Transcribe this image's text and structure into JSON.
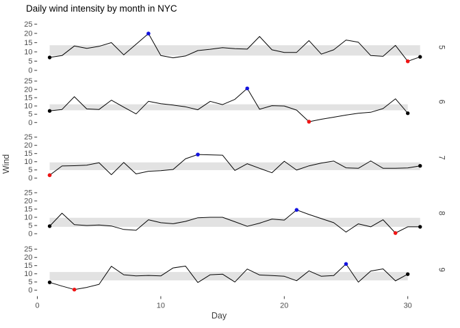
{
  "chart_data": {
    "type": "line",
    "title": "Daily wind intensity by month in NYC",
    "xlabel": "Day",
    "ylabel": "Wind",
    "x_ticks": [
      0,
      10,
      20,
      30
    ],
    "y_ticks": [
      25,
      20,
      15,
      10,
      5,
      0
    ],
    "ylim": [
      0,
      25
    ],
    "grid": "off",
    "legend": "none",
    "marker_meaning": {
      "blue_point": "monthly maximum wind",
      "red_point": "monthly minimum wind",
      "black_points": "first and last day of month"
    },
    "colors": {
      "line": "#000000",
      "band": "#E2E2E2",
      "max_point": "#1414E0",
      "min_point": "#F01414",
      "endpoint": "#000000",
      "tick_label": "#4d4d4d",
      "tick_mark": "#333333",
      "strip_label": "#444444"
    },
    "facets": [
      {
        "label": "5",
        "days": 31,
        "band": [
          8.0,
          13.6
        ],
        "max_day": 9,
        "min_day": 30,
        "endpoint_days": [
          1,
          31
        ],
        "values": [
          7.0,
          8.0,
          13.2,
          11.9,
          13.0,
          15.0,
          8.4,
          14.1,
          19.9,
          8.0,
          6.8,
          7.8,
          10.7,
          11.4,
          12.3,
          11.7,
          11.5,
          18.3,
          11.1,
          9.7,
          9.7,
          16.1,
          8.8,
          11.1,
          16.4,
          15.2,
          8.0,
          7.6,
          13.5,
          4.9,
          7.3
        ]
      },
      {
        "label": "6",
        "days": 30,
        "band": [
          7.4,
          11.0
        ],
        "max_day": 17,
        "min_day": 22,
        "endpoint_days": [
          1,
          30
        ],
        "values": [
          7.0,
          7.9,
          15.6,
          8.2,
          7.9,
          13.5,
          9.3,
          5.2,
          12.8,
          11.4,
          10.5,
          9.5,
          7.7,
          12.8,
          10.8,
          14.0,
          20.6,
          8.0,
          10.2,
          10.0,
          7.5,
          0.5,
          2.0,
          3.2,
          4.5,
          5.6,
          6.2,
          8.4,
          14.3,
          5.6
        ]
      },
      {
        "label": "7",
        "days": 31,
        "band": [
          4.9,
          9.6
        ],
        "max_day": 13,
        "min_day": 1,
        "endpoint_days": [
          1,
          31
        ],
        "values": [
          1.8,
          7.4,
          7.6,
          7.9,
          9.4,
          2.1,
          9.6,
          2.6,
          4.2,
          4.6,
          5.3,
          11.8,
          14.4,
          14.2,
          14.0,
          4.7,
          8.8,
          6.0,
          3.3,
          10.3,
          4.9,
          7.5,
          9.2,
          10.4,
          6.3,
          6.0,
          10.5,
          6.0,
          6.0,
          6.2,
          7.5
        ]
      },
      {
        "label": "8",
        "days": 31,
        "band": [
          4.2,
          9.7
        ],
        "max_day": 21,
        "min_day": 29,
        "endpoint_days": [
          1,
          31
        ],
        "values": [
          4.6,
          12.5,
          5.5,
          5.0,
          5.3,
          4.7,
          2.6,
          2.1,
          8.5,
          6.7,
          6.1,
          7.5,
          9.7,
          10.0,
          10.0,
          7.3,
          4.5,
          6.4,
          8.9,
          8.3,
          14.5,
          11.7,
          9.2,
          6.7,
          1.0,
          6.0,
          4.2,
          8.5,
          0.4,
          4.2,
          4.2
        ]
      },
      {
        "label": "9",
        "days": 30,
        "band": [
          6.0,
          11.1
        ],
        "max_day": 25,
        "min_day": 3,
        "endpoint_days": [
          1,
          30
        ],
        "values": [
          4.8,
          2.5,
          0.4,
          1.7,
          3.6,
          14.6,
          9.4,
          8.7,
          9.0,
          8.7,
          13.6,
          14.7,
          4.7,
          9.4,
          9.8,
          5.0,
          12.9,
          9.3,
          8.9,
          8.5,
          5.8,
          11.8,
          8.5,
          8.9,
          16.0,
          4.9,
          11.7,
          13.0,
          5.7,
          9.8
        ]
      }
    ]
  }
}
